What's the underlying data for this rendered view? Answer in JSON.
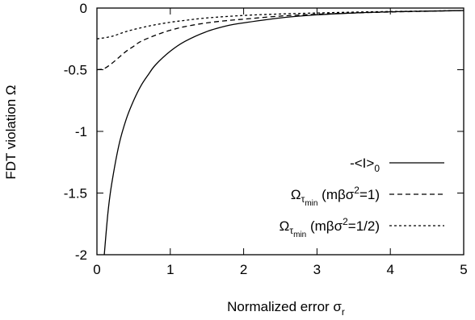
{
  "chart_data": {
    "type": "line",
    "xlabel": "Normalized error σ",
    "xlabel_sub": "r",
    "ylabel": "FDT violation Ω",
    "xlim": [
      0,
      5
    ],
    "ylim": [
      -2,
      0
    ],
    "xticks": [
      "0",
      "1",
      "2",
      "3",
      "4",
      "5"
    ],
    "yticks": [
      "0",
      "-0.5",
      "-1",
      "-1.5",
      "-2"
    ],
    "grid": false,
    "legend_position": "bottom-right",
    "series": [
      {
        "name": "-<I>0",
        "label_main": "-<I>",
        "label_sub": "0",
        "style": "solid",
        "x": [
          0.1,
          0.15,
          0.2,
          0.3,
          0.4,
          0.5,
          0.6,
          0.7,
          0.8,
          1.0,
          1.2,
          1.5,
          1.8,
          2.0,
          2.5,
          3.0,
          3.5,
          4.0,
          4.5,
          5.0
        ],
        "y": [
          -2.0,
          -1.66,
          -1.43,
          -1.11,
          -0.9,
          -0.75,
          -0.63,
          -0.54,
          -0.46,
          -0.35,
          -0.27,
          -0.19,
          -0.14,
          -0.12,
          -0.08,
          -0.055,
          -0.04,
          -0.03,
          -0.025,
          -0.02
        ]
      },
      {
        "name": "Ωτmin (mβσ2=1)",
        "label_main": "Ω",
        "label_sub": "τ",
        "label_subsub": "min",
        "label_params": "(mβσ",
        "label_sup": "2",
        "label_end": "=1)",
        "style": "dashed",
        "x": [
          0.0,
          0.1,
          0.2,
          0.3,
          0.4,
          0.5,
          0.6,
          0.8,
          1.0,
          1.2,
          1.5,
          1.8,
          2.0,
          2.5,
          3.0,
          3.5,
          4.0,
          4.5,
          5.0
        ],
        "y": [
          -0.5,
          -0.49,
          -0.45,
          -0.4,
          -0.35,
          -0.31,
          -0.27,
          -0.22,
          -0.18,
          -0.15,
          -0.12,
          -0.1,
          -0.09,
          -0.065,
          -0.05,
          -0.04,
          -0.032,
          -0.026,
          -0.02
        ]
      },
      {
        "name": "Ωτmin (mβσ2=1/2)",
        "label_main": "Ω",
        "label_sub": "τ",
        "label_subsub": "min",
        "label_params": "(mβσ",
        "label_sup": "2",
        "label_end": "=1/2)",
        "style": "dotted",
        "x": [
          0.0,
          0.2,
          0.4,
          0.6,
          0.8,
          1.0,
          1.2,
          1.5,
          2.0,
          2.5,
          3.0,
          3.5,
          4.0,
          4.5,
          5.0
        ],
        "y": [
          -0.25,
          -0.23,
          -0.19,
          -0.16,
          -0.135,
          -0.115,
          -0.1,
          -0.08,
          -0.06,
          -0.048,
          -0.04,
          -0.033,
          -0.028,
          -0.024,
          -0.02
        ]
      }
    ]
  }
}
